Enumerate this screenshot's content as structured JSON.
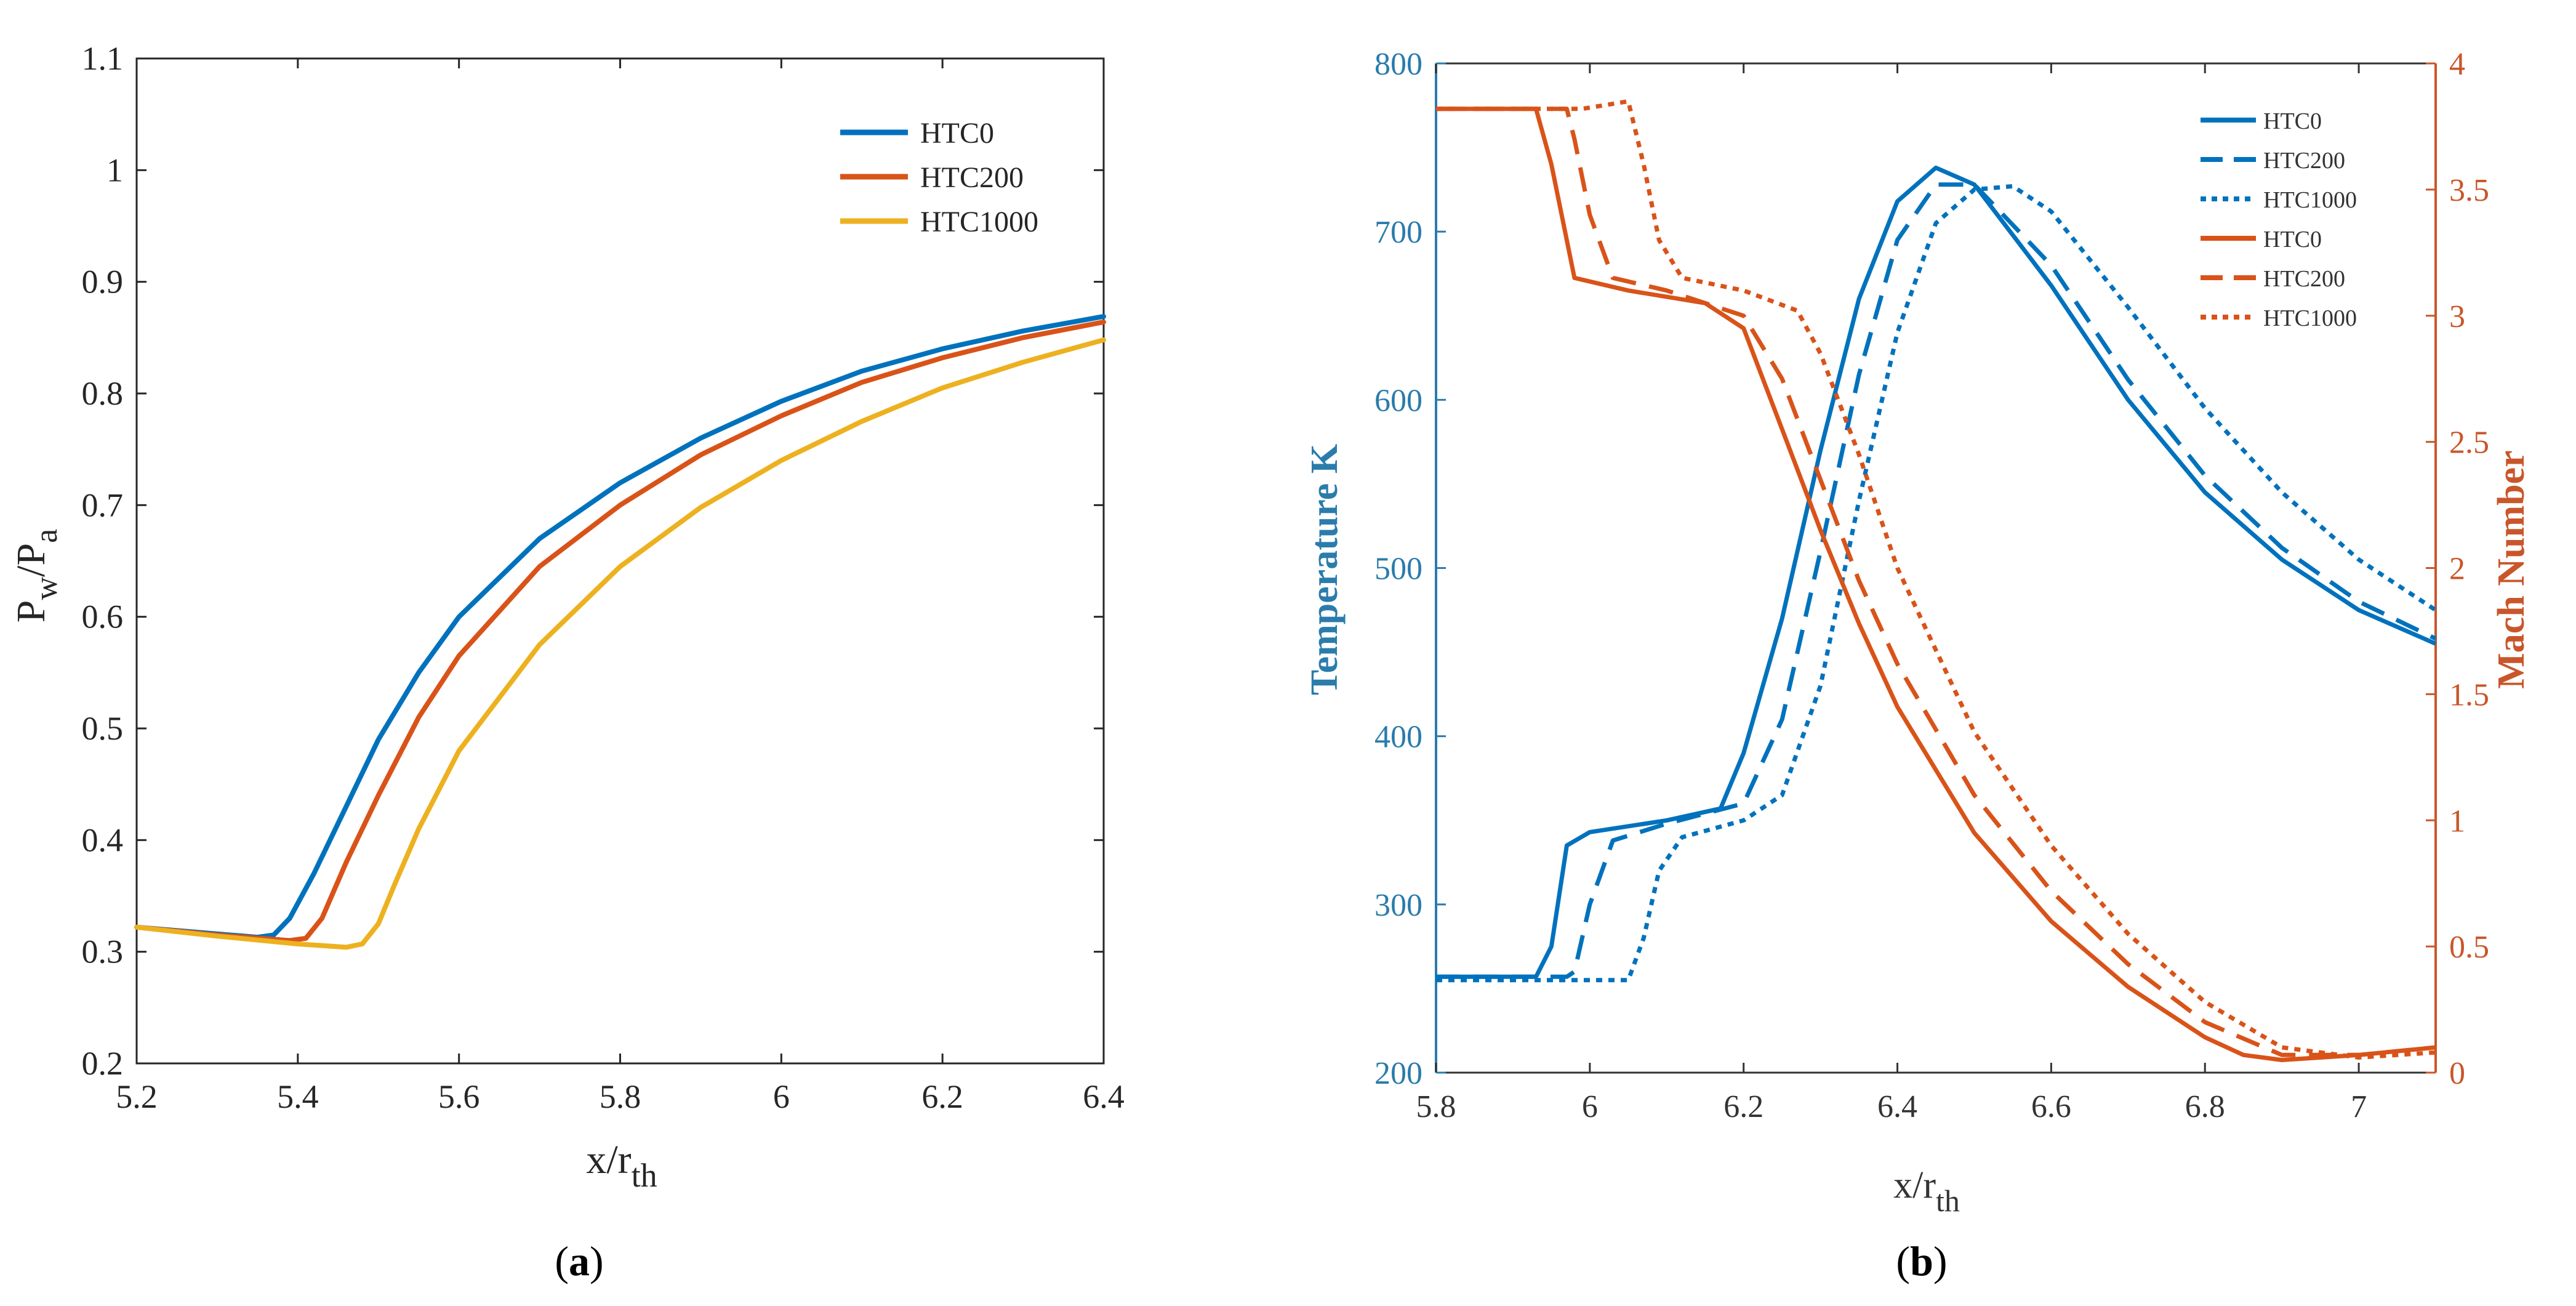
{
  "colors": {
    "blue": "#0072BD",
    "orange": "#D95319",
    "yellow": "#EDB120",
    "axis_a": "#262626",
    "axis_b_left": "#2A7CAB",
    "axis_b_right": "#C9562A"
  },
  "panels": {
    "a": {
      "caption_open": "(",
      "caption_letter": "a",
      "caption_close": ")"
    },
    "b": {
      "caption_open": "(",
      "caption_letter": "b",
      "caption_close": ")"
    }
  },
  "chart_data": [
    {
      "id": "a",
      "type": "line",
      "xlabel": {
        "main": "x/r",
        "sub": "th"
      },
      "ylabel": {
        "p": "P",
        "w": "w",
        "slash": "/P",
        "a": "a"
      },
      "xlim": [
        5.2,
        6.4
      ],
      "ylim": [
        0.2,
        1.1
      ],
      "xticks": [
        5.2,
        5.4,
        5.6,
        5.8,
        6,
        6.2,
        6.4
      ],
      "xtick_labels": [
        "5.2",
        "5.4",
        "5.6",
        "5.8",
        "6",
        "6.2",
        "6.4"
      ],
      "yticks": [
        0.2,
        0.3,
        0.4,
        0.5,
        0.6,
        0.7,
        0.8,
        0.9,
        1,
        1.1
      ],
      "ytick_labels": [
        "0.2",
        "0.3",
        "0.4",
        "0.5",
        "0.6",
        "0.7",
        "0.8",
        "0.9",
        "1",
        "1.1"
      ],
      "legend_position": "top-right",
      "series": [
        {
          "name": "HTC0",
          "color": "#0072BD",
          "dash": "solid",
          "x": [
            5.2,
            5.3,
            5.35,
            5.37,
            5.39,
            5.42,
            5.46,
            5.5,
            5.55,
            5.6,
            5.7,
            5.8,
            5.9,
            6.0,
            6.1,
            6.2,
            6.3,
            6.4
          ],
          "y": [
            0.322,
            0.316,
            0.313,
            0.315,
            0.33,
            0.37,
            0.43,
            0.49,
            0.55,
            0.6,
            0.67,
            0.72,
            0.76,
            0.793,
            0.82,
            0.84,
            0.856,
            0.869
          ]
        },
        {
          "name": "HTC200",
          "color": "#D95319",
          "dash": "solid",
          "x": [
            5.2,
            5.3,
            5.39,
            5.41,
            5.43,
            5.46,
            5.5,
            5.55,
            5.6,
            5.7,
            5.8,
            5.9,
            6.0,
            6.1,
            6.2,
            6.3,
            6.4
          ],
          "y": [
            0.322,
            0.315,
            0.31,
            0.312,
            0.33,
            0.38,
            0.44,
            0.51,
            0.565,
            0.645,
            0.7,
            0.745,
            0.78,
            0.81,
            0.832,
            0.85,
            0.864
          ]
        },
        {
          "name": "HTC1000",
          "color": "#EDB120",
          "dash": "solid",
          "x": [
            5.2,
            5.3,
            5.4,
            5.46,
            5.48,
            5.5,
            5.52,
            5.55,
            5.6,
            5.7,
            5.8,
            5.9,
            6.0,
            6.1,
            6.2,
            6.3,
            6.4
          ],
          "y": [
            0.322,
            0.314,
            0.307,
            0.304,
            0.307,
            0.325,
            0.36,
            0.41,
            0.48,
            0.575,
            0.645,
            0.698,
            0.74,
            0.775,
            0.805,
            0.828,
            0.848
          ]
        }
      ]
    },
    {
      "id": "b",
      "type": "line",
      "xlabel": {
        "main": "x/r",
        "sub": "th"
      },
      "ylabel_left": "Temperature K",
      "ylabel_right": "Mach Number",
      "xlim": [
        5.8,
        7.1
      ],
      "ylim_left": [
        200,
        800
      ],
      "ylim_right": [
        0,
        4
      ],
      "xticks": [
        5.8,
        6,
        6.2,
        6.4,
        6.6,
        6.8,
        7
      ],
      "xtick_labels": [
        "5.8",
        "6",
        "6.2",
        "6.4",
        "6.6",
        "6.8",
        "7"
      ],
      "yticks_left": [
        200,
        300,
        400,
        500,
        600,
        700,
        800
      ],
      "ytick_labels_left": [
        "200",
        "300",
        "400",
        "500",
        "600",
        "700",
        "800"
      ],
      "yticks_right": [
        0,
        0.5,
        1,
        1.5,
        2,
        2.5,
        3,
        3.5,
        4
      ],
      "ytick_labels_right": [
        "0",
        "0.5",
        "1",
        "1.5",
        "2",
        "2.5",
        "3",
        "3.5",
        "4"
      ],
      "legend_position": "top-right",
      "series": [
        {
          "name": "HTC0",
          "axis": "left",
          "color": "#0072BD",
          "dash": "solid",
          "x": [
            5.8,
            5.93,
            5.95,
            5.97,
            6.0,
            6.1,
            6.17,
            6.2,
            6.25,
            6.3,
            6.35,
            6.4,
            6.45,
            6.5,
            6.6,
            6.7,
            6.8,
            6.9,
            7.0,
            7.1
          ],
          "y": [
            257,
            257,
            275,
            335,
            343,
            350,
            357,
            390,
            470,
            570,
            660,
            718,
            738,
            728,
            668,
            600,
            545,
            505,
            475,
            455
          ]
        },
        {
          "name": "HTC200",
          "axis": "left",
          "color": "#0072BD",
          "dash": "dashed",
          "x": [
            5.8,
            5.97,
            5.98,
            6.0,
            6.03,
            6.1,
            6.2,
            6.25,
            6.3,
            6.35,
            6.4,
            6.45,
            6.5,
            6.6,
            6.7,
            6.8,
            6.9,
            7.0,
            7.1
          ],
          "y": [
            257,
            257,
            260,
            300,
            338,
            348,
            360,
            410,
            510,
            615,
            695,
            728,
            728,
            680,
            612,
            555,
            512,
            480,
            458
          ]
        },
        {
          "name": "HTC1000",
          "axis": "left",
          "color": "#0072BD",
          "dash": "dotted",
          "x": [
            5.8,
            6.05,
            6.07,
            6.09,
            6.12,
            6.2,
            6.25,
            6.3,
            6.35,
            6.4,
            6.45,
            6.5,
            6.55,
            6.6,
            6.7,
            6.8,
            6.9,
            7.0,
            7.1
          ],
          "y": [
            255,
            255,
            280,
            320,
            340,
            350,
            365,
            430,
            540,
            640,
            705,
            725,
            727,
            712,
            655,
            595,
            545,
            505,
            475
          ]
        },
        {
          "name": "HTC0",
          "axis": "right",
          "color": "#D95319",
          "dash": "solid",
          "x": [
            5.8,
            5.93,
            5.95,
            5.98,
            6.05,
            6.15,
            6.2,
            6.25,
            6.3,
            6.35,
            6.4,
            6.5,
            6.6,
            6.7,
            6.8,
            6.85,
            6.9,
            7.0,
            7.1
          ],
          "y": [
            3.82,
            3.82,
            3.6,
            3.15,
            3.1,
            3.05,
            2.95,
            2.55,
            2.15,
            1.78,
            1.45,
            0.95,
            0.6,
            0.34,
            0.14,
            0.07,
            0.05,
            0.07,
            0.1
          ]
        },
        {
          "name": "HTC200",
          "axis": "right",
          "color": "#D95319",
          "dash": "dashed",
          "x": [
            5.8,
            5.97,
            5.98,
            6.0,
            6.03,
            6.1,
            6.2,
            6.25,
            6.3,
            6.35,
            6.4,
            6.5,
            6.6,
            6.7,
            6.8,
            6.9,
            7.0,
            7.1
          ],
          "y": [
            3.82,
            3.82,
            3.7,
            3.4,
            3.15,
            3.1,
            3.0,
            2.75,
            2.35,
            1.95,
            1.62,
            1.1,
            0.72,
            0.43,
            0.2,
            0.07,
            0.07,
            0.1
          ]
        },
        {
          "name": "HTC1000",
          "axis": "right",
          "color": "#D95319",
          "dash": "dotted",
          "x": [
            5.8,
            5.99,
            6.05,
            6.07,
            6.09,
            6.12,
            6.2,
            6.27,
            6.3,
            6.35,
            6.4,
            6.5,
            6.6,
            6.7,
            6.8,
            6.9,
            7.0,
            7.1
          ],
          "y": [
            3.82,
            3.82,
            3.85,
            3.6,
            3.3,
            3.15,
            3.1,
            3.02,
            2.85,
            2.45,
            2.0,
            1.35,
            0.9,
            0.55,
            0.28,
            0.1,
            0.06,
            0.08
          ]
        }
      ]
    }
  ]
}
